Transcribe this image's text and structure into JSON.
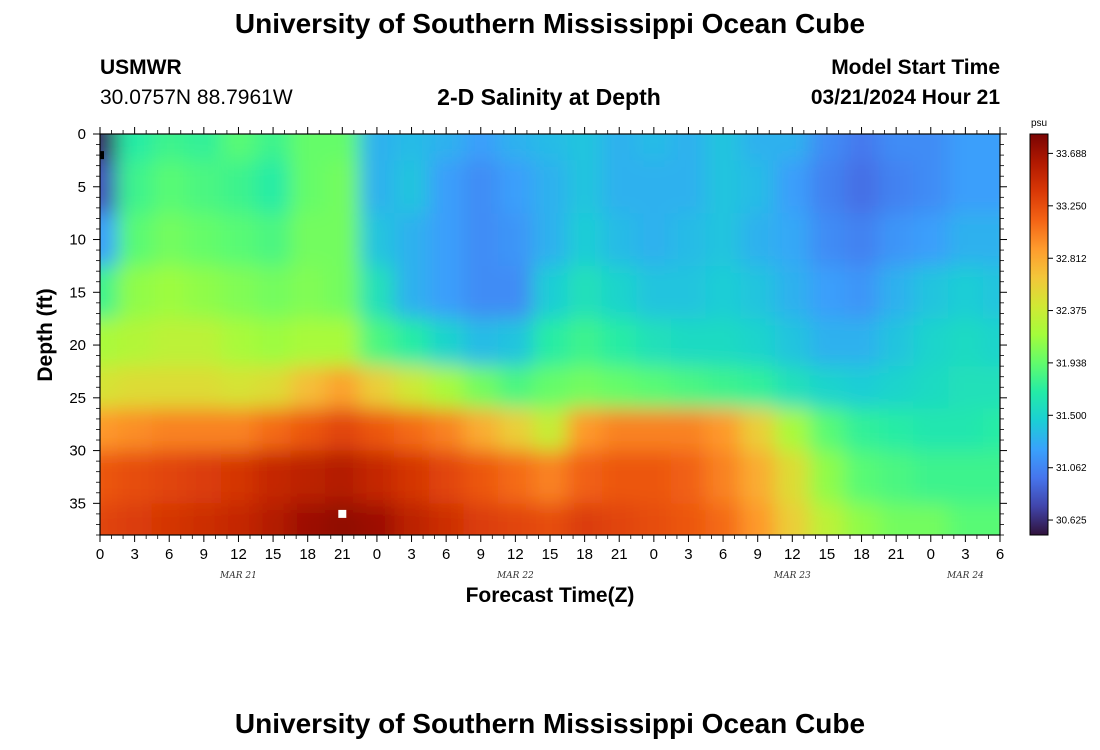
{
  "header": {
    "title_top": "University of Southern Mississippi Ocean Cube",
    "title_bottom": "University of Southern Mississippi Ocean Cube",
    "station_id": "USMWR",
    "coordinates": "30.0757N  88.7961W",
    "plot_title": "2-D Salinity at Depth",
    "model_start_label": "Model Start Time",
    "model_start_value": "03/21/2024 Hour 21"
  },
  "chart_data": {
    "type": "heatmap",
    "title": "2-D Salinity at Depth",
    "xlabel": "Forecast Time(Z)",
    "ylabel": "Depth (ft)",
    "x_ticks": [
      "0",
      "3",
      "6",
      "9",
      "12",
      "15",
      "18",
      "21",
      "0",
      "3",
      "6",
      "9",
      "12",
      "15",
      "18",
      "21",
      "0",
      "3",
      "6",
      "9",
      "12",
      "15",
      "18",
      "21",
      "0",
      "3",
      "6"
    ],
    "x_range_hours": [
      0,
      78
    ],
    "y_ticks": [
      0,
      5,
      10,
      15,
      20,
      25,
      30,
      35
    ],
    "y_range_ft": [
      0,
      38
    ],
    "y_reversed": true,
    "date_labels": [
      {
        "label": "MAR 21",
        "hour": 12
      },
      {
        "label": "MAR 22",
        "hour": 36
      },
      {
        "label": "MAR 23",
        "hour": 60
      },
      {
        "label": "MAR 24",
        "hour": 75
      }
    ],
    "colorbar": {
      "unit": "psu",
      "min": 30.5,
      "max": 33.85,
      "ticks": [
        "33.688",
        "33.250",
        "32.812",
        "32.375",
        "31.938",
        "31.500",
        "31.062",
        "30.625"
      ],
      "colors": [
        "#30123b",
        "#4145ab",
        "#4675ed",
        "#39a2fc",
        "#1bcfd4",
        "#24eca6",
        "#61fc6c",
        "#a4fc3b",
        "#d1e834",
        "#f3c63a",
        "#fe9b2d",
        "#f36315",
        "#d93806",
        "#b11901",
        "#7a0403"
      ]
    },
    "approx_salinity_psu": {
      "depth_ft": [
        0,
        5,
        10,
        15,
        20,
        24,
        28,
        32,
        38
      ],
      "hours": [
        0,
        3,
        6,
        9,
        12,
        15,
        18,
        21,
        24,
        27,
        30,
        33,
        36,
        39,
        42,
        45,
        48,
        51,
        54,
        57,
        60,
        63,
        66,
        69,
        72,
        75,
        78
      ],
      "rows": [
        [
          30.6,
          31.7,
          31.8,
          31.75,
          31.9,
          31.8,
          31.95,
          31.95,
          31.3,
          31.35,
          31.3,
          31.2,
          31.3,
          31.35,
          31.4,
          31.3,
          31.35,
          31.3,
          31.4,
          31.3,
          31.3,
          31.1,
          31.0,
          31.1,
          31.1,
          31.2,
          31.2
        ],
        [
          30.8,
          31.8,
          31.9,
          31.85,
          31.8,
          31.7,
          31.95,
          32.0,
          31.3,
          31.4,
          31.2,
          31.1,
          31.2,
          31.3,
          31.4,
          31.3,
          31.3,
          31.3,
          31.4,
          31.35,
          31.2,
          31.05,
          30.95,
          31.05,
          31.1,
          31.2,
          31.2
        ],
        [
          31.2,
          31.9,
          32.0,
          31.95,
          31.9,
          31.85,
          32.0,
          32.0,
          31.4,
          31.3,
          31.2,
          31.1,
          31.15,
          31.3,
          31.45,
          31.35,
          31.3,
          31.35,
          31.4,
          31.3,
          31.25,
          31.1,
          31.05,
          31.15,
          31.2,
          31.3,
          31.3
        ],
        [
          31.8,
          32.1,
          32.15,
          32.1,
          32.05,
          32.0,
          32.05,
          32.0,
          31.6,
          31.3,
          31.2,
          31.1,
          31.1,
          31.45,
          31.6,
          31.5,
          31.4,
          31.4,
          31.45,
          31.4,
          31.3,
          31.2,
          31.15,
          31.3,
          31.4,
          31.45,
          31.4
        ],
        [
          32.2,
          32.25,
          32.3,
          32.3,
          32.2,
          32.15,
          32.2,
          32.2,
          31.85,
          31.7,
          31.5,
          31.35,
          31.4,
          31.7,
          31.8,
          31.7,
          31.6,
          31.55,
          31.55,
          31.5,
          31.4,
          31.3,
          31.3,
          31.4,
          31.5,
          31.55,
          31.5
        ],
        [
          32.45,
          32.5,
          32.5,
          32.5,
          32.45,
          32.5,
          32.7,
          32.85,
          32.6,
          32.4,
          32.2,
          32.0,
          31.85,
          31.95,
          32.0,
          31.95,
          31.9,
          31.85,
          31.8,
          31.75,
          31.6,
          31.5,
          31.45,
          31.5,
          31.55,
          31.6,
          31.6
        ],
        [
          32.9,
          32.95,
          33.0,
          33.0,
          33.0,
          33.1,
          33.2,
          33.3,
          33.2,
          33.1,
          33.0,
          32.8,
          32.6,
          32.35,
          32.9,
          33.0,
          33.0,
          33.0,
          32.9,
          32.6,
          32.2,
          31.9,
          31.75,
          31.7,
          31.65,
          31.65,
          31.7
        ],
        [
          33.2,
          33.25,
          33.3,
          33.35,
          33.4,
          33.5,
          33.55,
          33.6,
          33.5,
          33.4,
          33.3,
          33.2,
          33.1,
          33.0,
          33.15,
          33.2,
          33.2,
          33.15,
          33.0,
          32.8,
          32.5,
          32.1,
          31.9,
          31.85,
          31.8,
          31.8,
          31.8
        ],
        [
          33.3,
          33.35,
          33.4,
          33.45,
          33.5,
          33.6,
          33.7,
          33.75,
          33.7,
          33.55,
          33.45,
          33.35,
          33.3,
          33.25,
          33.35,
          33.3,
          33.25,
          33.2,
          33.1,
          32.9,
          32.6,
          32.3,
          32.1,
          32.0,
          32.0,
          31.9,
          31.9
        ]
      ]
    }
  }
}
